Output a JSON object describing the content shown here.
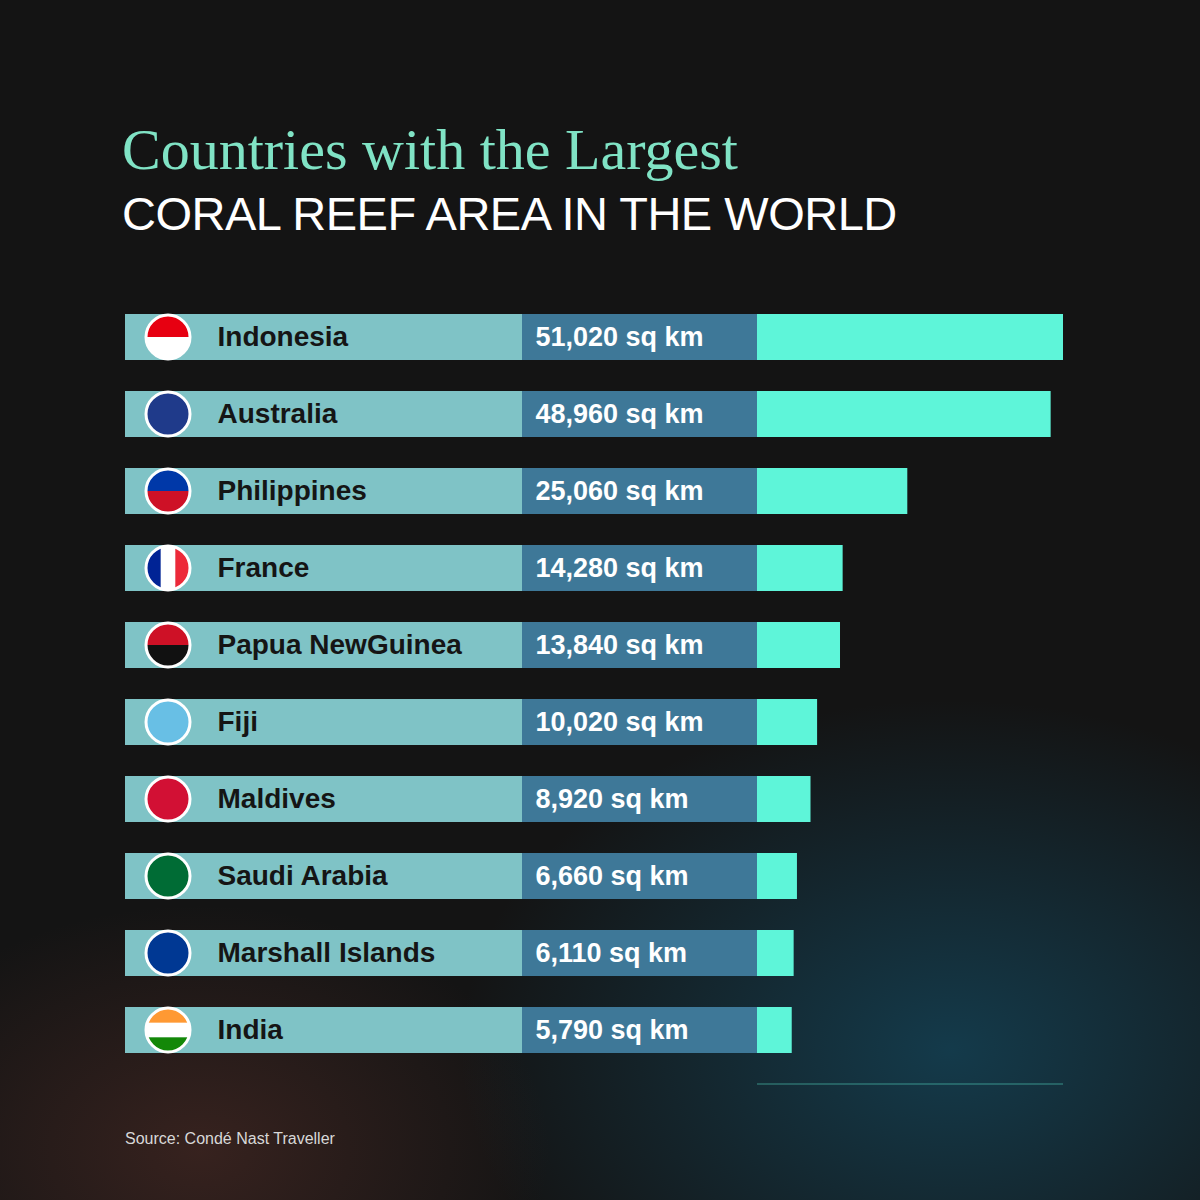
{
  "chart_data": {
    "type": "bar",
    "title": "Countries with the Largest",
    "subtitle": "CORAL REEF AREA IN THE WORLD",
    "caption": "Source: Condé Nast Traveller",
    "orientation": "horizontal",
    "categories": [
      "Indonesia",
      "Australia",
      "Philippines",
      "France",
      "Papua NewGuinea",
      "Fiji",
      "Maldives",
      "Saudi Arabia",
      "Marshall Islands",
      "India"
    ],
    "values": [
      51020,
      48960,
      25060,
      14280,
      13840,
      10020,
      8920,
      6660,
      6110,
      5790
    ],
    "value_labels": [
      "51,020 sq km",
      "48,960 sq km",
      "25,060 sq km",
      "14,280 sq km",
      "13,840 sq km",
      "10,020 sq km",
      "8,920 sq km",
      "6,660 sq km",
      "6,110 sq km",
      "5,790 sq km"
    ],
    "color": "#5ef5d9",
    "xlim": [
      0,
      51020
    ],
    "xticks": [],
    "grid": false,
    "data_labels": true,
    "tick_labels": false
  }
}
